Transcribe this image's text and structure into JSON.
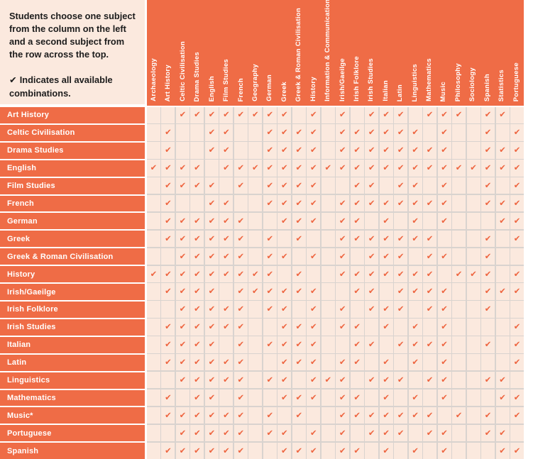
{
  "intro": {
    "paragraph": "Students choose one subject from the column on the left and a second subject from the row across the top.",
    "note_icon": "✔",
    "note_text": "Indicates all available combinations."
  },
  "check_glyph": "✔",
  "columns": [
    "Archaeology",
    "Art History",
    "Celtic Civilisation",
    "Drama Studies",
    "English",
    "Film Studies",
    "French",
    "Geography",
    "German",
    "Greek",
    "Greek & Roman Civilisation",
    "History",
    "Information & Communications",
    "Irish/Gaeilge",
    "Irish Folklore",
    "Irish Studies",
    "Italian",
    "Latin",
    "Linguistics",
    "Mathematics",
    "Music",
    "Philosophy",
    "Sociology",
    "Spanish",
    "Statistics",
    "Portuguese"
  ],
  "rows": [
    {
      "label": "Art History",
      "checks": [
        3,
        4,
        5,
        6,
        7,
        8,
        9,
        10,
        12,
        14,
        16,
        17,
        18,
        20,
        21,
        22,
        24,
        25
      ]
    },
    {
      "label": "Celtic Civilisation",
      "checks": [
        2,
        5,
        6,
        9,
        10,
        11,
        12,
        14,
        15,
        16,
        17,
        18,
        19,
        21,
        24,
        26
      ]
    },
    {
      "label": "Drama Studies",
      "checks": [
        2,
        5,
        6,
        9,
        10,
        11,
        12,
        14,
        15,
        16,
        17,
        18,
        19,
        20,
        21,
        24,
        25,
        26
      ]
    },
    {
      "label": "English",
      "checks": [
        1,
        2,
        3,
        4,
        6,
        7,
        8,
        9,
        10,
        11,
        12,
        13,
        14,
        15,
        16,
        17,
        18,
        19,
        20,
        21,
        22,
        23,
        24,
        25,
        26
      ]
    },
    {
      "label": "Film Studies",
      "checks": [
        2,
        3,
        4,
        5,
        7,
        9,
        10,
        11,
        12,
        15,
        16,
        18,
        19,
        21,
        24,
        26
      ]
    },
    {
      "label": "French",
      "checks": [
        2,
        5,
        6,
        9,
        10,
        11,
        12,
        14,
        15,
        16,
        17,
        18,
        19,
        20,
        21,
        24,
        25,
        26
      ]
    },
    {
      "label": "German",
      "checks": [
        2,
        3,
        4,
        5,
        6,
        7,
        10,
        11,
        12,
        14,
        15,
        17,
        19,
        21,
        25,
        26
      ]
    },
    {
      "label": "Greek",
      "checks": [
        2,
        3,
        4,
        5,
        6,
        7,
        9,
        11,
        14,
        15,
        16,
        17,
        18,
        19,
        20,
        24,
        26
      ]
    },
    {
      "label": "Greek & Roman Civilisation",
      "checks": [
        3,
        4,
        5,
        6,
        7,
        9,
        10,
        12,
        14,
        16,
        17,
        18,
        20,
        21,
        24
      ]
    },
    {
      "label": "History",
      "checks": [
        1,
        2,
        3,
        4,
        5,
        6,
        7,
        8,
        9,
        11,
        14,
        15,
        16,
        17,
        18,
        19,
        20,
        22,
        23,
        24,
        26
      ]
    },
    {
      "label": "Irish/Gaeilge",
      "checks": [
        2,
        3,
        4,
        5,
        7,
        8,
        9,
        10,
        11,
        12,
        15,
        16,
        18,
        19,
        20,
        21,
        24,
        25,
        26
      ]
    },
    {
      "label": "Irish Folklore",
      "checks": [
        3,
        4,
        5,
        6,
        7,
        9,
        10,
        12,
        14,
        16,
        17,
        18,
        20,
        21,
        24
      ]
    },
    {
      "label": "Irish Studies",
      "checks": [
        2,
        3,
        4,
        5,
        6,
        7,
        10,
        11,
        12,
        14,
        15,
        17,
        19,
        21,
        26
      ]
    },
    {
      "label": "Italian",
      "checks": [
        2,
        3,
        4,
        5,
        7,
        9,
        10,
        11,
        12,
        15,
        16,
        18,
        19,
        20,
        21,
        24,
        26
      ]
    },
    {
      "label": "Latin",
      "checks": [
        2,
        3,
        4,
        5,
        6,
        7,
        10,
        11,
        12,
        14,
        15,
        17,
        19,
        21,
        26
      ]
    },
    {
      "label": "Linguistics",
      "checks": [
        3,
        4,
        5,
        6,
        7,
        9,
        10,
        12,
        13,
        14,
        16,
        17,
        18,
        20,
        21,
        24,
        25
      ]
    },
    {
      "label": "Mathematics",
      "checks": [
        2,
        4,
        5,
        7,
        10,
        11,
        12,
        14,
        15,
        17,
        19,
        21,
        25,
        26
      ]
    },
    {
      "label": "Music*",
      "checks": [
        2,
        3,
        4,
        5,
        6,
        7,
        9,
        11,
        14,
        15,
        16,
        17,
        18,
        19,
        20,
        22,
        24,
        26
      ]
    },
    {
      "label": "Portuguese",
      "checks": [
        3,
        4,
        5,
        6,
        7,
        9,
        10,
        12,
        14,
        16,
        17,
        18,
        20,
        21,
        24,
        25
      ]
    },
    {
      "label": "Spanish",
      "checks": [
        2,
        3,
        4,
        5,
        6,
        7,
        10,
        11,
        12,
        14,
        15,
        17,
        19,
        21,
        25,
        26
      ]
    }
  ],
  "colors": {
    "orange": "#ef6c46",
    "check_orange": "#ee6540",
    "cell_bg": "#fbe9de",
    "intro_bg": "#fbe9de",
    "grid_line": "#d9d3cf",
    "text_dark": "#1c1c1c",
    "label_text": "#ffffff"
  }
}
